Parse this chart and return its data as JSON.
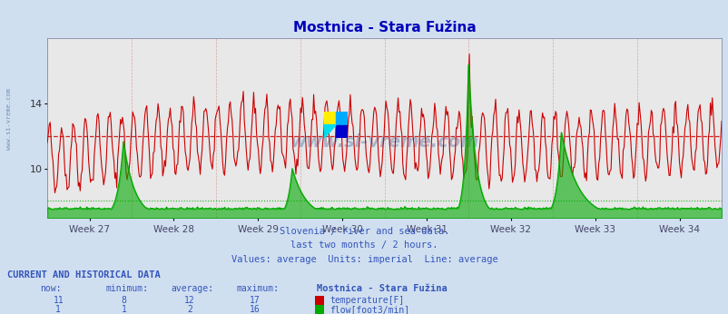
{
  "title": "Mostnica - Stara Fužina",
  "bg_color": "#d0dff0",
  "plot_bg_color": "#e8e8e8",
  "x_labels": [
    "Week 27",
    "Week 28",
    "Week 29",
    "Week 30",
    "Week 31",
    "Week 32",
    "Week 33",
    "Week 34"
  ],
  "y_ticks_temp": [
    10,
    14
  ],
  "temp_avg": 12.0,
  "flow_avg": 2.0,
  "temp_color": "#cc0000",
  "flow_color": "#00aa00",
  "subtitle1": "Slovenia / river and sea data.",
  "subtitle2": "last two months / 2 hours.",
  "subtitle3": "Values: average  Units: imperial  Line: average",
  "table_header": "CURRENT AND HISTORICAL DATA",
  "col_now": "now:",
  "col_min": "minimum:",
  "col_avg": "average:",
  "col_max": "maximum:",
  "station_name": "Mostnica - Stara Fužina",
  "temp_now": 11,
  "temp_now_min": 8,
  "temp_now_avg": 12,
  "temp_now_max": 17,
  "flow_now": 1,
  "flow_now_min": 1,
  "flow_now_avg": 2,
  "flow_now_max": 16,
  "temp_label": "temperature[F]",
  "flow_label": "flow[foot3/min]",
  "n_points": 720,
  "weeks": 8,
  "temp_ylim": [
    7,
    18
  ],
  "flow_ylim": [
    0,
    20
  ]
}
